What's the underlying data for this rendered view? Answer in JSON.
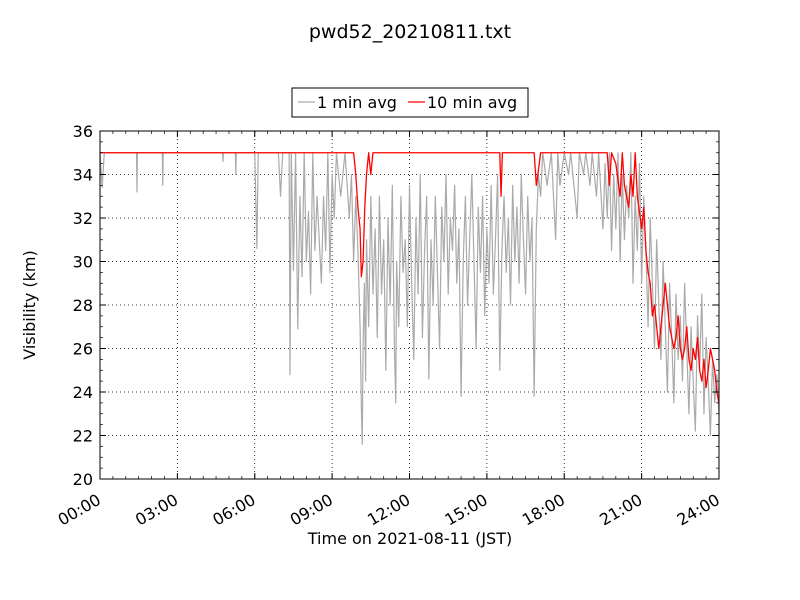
{
  "chart_data": {
    "type": "line",
    "title": "pwd52_20210811.txt",
    "xlabel": "Time on 2021-08-11 (JST)",
    "ylabel": "Visibility (km)",
    "xlim": [
      "00:00",
      "24:00"
    ],
    "ylim": [
      20,
      36
    ],
    "x_ticks": [
      "00:00",
      "03:00",
      "06:00",
      "09:00",
      "12:00",
      "15:00",
      "18:00",
      "21:00",
      "24:00"
    ],
    "y_ticks": [
      20,
      22,
      24,
      26,
      28,
      30,
      32,
      34,
      36
    ],
    "grid": true,
    "legend_position": "top-center, above plot",
    "series": [
      {
        "name": "1 min avg",
        "color": "#aaaaaa",
        "points": [
          [
            "00:00",
            35.0
          ],
          [
            "00:05",
            33.4
          ],
          [
            "00:10",
            35.0
          ],
          [
            "01:25",
            35.0
          ],
          [
            "01:26",
            33.2
          ],
          [
            "01:27",
            35.0
          ],
          [
            "02:25",
            35.0
          ],
          [
            "02:26",
            33.5
          ],
          [
            "02:27",
            35.0
          ],
          [
            "04:45",
            35.0
          ],
          [
            "04:46",
            34.6
          ],
          [
            "04:47",
            35.0
          ],
          [
            "05:15",
            35.0
          ],
          [
            "05:16",
            34.0
          ],
          [
            "05:17",
            35.0
          ],
          [
            "06:00",
            35.0
          ],
          [
            "06:05",
            30.6
          ],
          [
            "06:08",
            35.0
          ],
          [
            "06:55",
            35.0
          ],
          [
            "07:00",
            33.0
          ],
          [
            "07:05",
            35.0
          ],
          [
            "07:20",
            35.0
          ],
          [
            "07:22",
            24.8
          ],
          [
            "07:25",
            35.0
          ],
          [
            "07:30",
            29.6
          ],
          [
            "07:35",
            35.0
          ],
          [
            "07:40",
            26.9
          ],
          [
            "07:45",
            33.0
          ],
          [
            "07:50",
            29.3
          ],
          [
            "07:55",
            35.0
          ],
          [
            "08:00",
            30.0
          ],
          [
            "08:05",
            32.3
          ],
          [
            "08:10",
            28.5
          ],
          [
            "08:15",
            35.0
          ],
          [
            "08:20",
            30.5
          ],
          [
            "08:25",
            33.0
          ],
          [
            "08:30",
            31.0
          ],
          [
            "08:35",
            29.0
          ],
          [
            "08:40",
            33.0
          ],
          [
            "08:45",
            30.5
          ],
          [
            "08:50",
            35.0
          ],
          [
            "08:55",
            29.5
          ],
          [
            "09:00",
            34.0
          ],
          [
            "09:05",
            32.0
          ],
          [
            "09:10",
            35.0
          ],
          [
            "09:20",
            33.0
          ],
          [
            "09:30",
            35.0
          ],
          [
            "09:40",
            32.0
          ],
          [
            "09:45",
            34.0
          ],
          [
            "09:50",
            30.0
          ],
          [
            "09:55",
            33.0
          ],
          [
            "10:00",
            30.5
          ],
          [
            "10:05",
            27.0
          ],
          [
            "10:08",
            23.3
          ],
          [
            "10:10",
            21.6
          ],
          [
            "10:12",
            26.0
          ],
          [
            "10:15",
            29.0
          ],
          [
            "10:18",
            24.5
          ],
          [
            "10:20",
            31.0
          ],
          [
            "10:25",
            27.0
          ],
          [
            "10:30",
            33.0
          ],
          [
            "10:35",
            28.5
          ],
          [
            "10:40",
            31.5
          ],
          [
            "10:45",
            26.5
          ],
          [
            "10:50",
            33.0
          ],
          [
            "10:55",
            28.5
          ],
          [
            "11:00",
            31.0
          ],
          [
            "11:05",
            25.0
          ],
          [
            "11:10",
            32.0
          ],
          [
            "11:15",
            28.0
          ],
          [
            "11:20",
            33.5
          ],
          [
            "11:25",
            26.0
          ],
          [
            "11:28",
            23.5
          ],
          [
            "11:30",
            30.0
          ],
          [
            "11:35",
            27.0
          ],
          [
            "11:40",
            33.0
          ],
          [
            "11:45",
            29.5
          ],
          [
            "11:50",
            31.0
          ],
          [
            "11:55",
            27.0
          ],
          [
            "12:00",
            33.5
          ],
          [
            "12:05",
            29.0
          ],
          [
            "12:10",
            25.5
          ],
          [
            "12:15",
            32.0
          ],
          [
            "12:20",
            28.5
          ],
          [
            "12:25",
            34.0
          ],
          [
            "12:30",
            26.5
          ],
          [
            "12:35",
            30.5
          ],
          [
            "12:40",
            33.0
          ],
          [
            "12:45",
            24.6
          ],
          [
            "12:50",
            31.0
          ],
          [
            "12:55",
            28.0
          ],
          [
            "13:00",
            33.0
          ],
          [
            "13:05",
            29.5
          ],
          [
            "13:10",
            26.0
          ],
          [
            "13:15",
            32.5
          ],
          [
            "13:20",
            30.0
          ],
          [
            "13:25",
            34.0
          ],
          [
            "13:30",
            28.5
          ],
          [
            "13:35",
            32.0
          ],
          [
            "13:40",
            30.5
          ],
          [
            "13:45",
            33.5
          ],
          [
            "13:50",
            29.0
          ],
          [
            "13:55",
            31.5
          ],
          [
            "14:00",
            23.8
          ],
          [
            "14:05",
            30.0
          ],
          [
            "14:10",
            33.0
          ],
          [
            "14:15",
            28.0
          ],
          [
            "14:20",
            31.0
          ],
          [
            "14:25",
            34.0
          ],
          [
            "14:30",
            30.0
          ],
          [
            "14:35",
            26.0
          ],
          [
            "14:40",
            32.5
          ],
          [
            "14:45",
            29.5
          ],
          [
            "14:50",
            33.0
          ],
          [
            "14:55",
            27.5
          ],
          [
            "15:00",
            31.5
          ],
          [
            "15:05",
            29.0
          ],
          [
            "15:10",
            33.5
          ],
          [
            "15:15",
            28.5
          ],
          [
            "15:20",
            31.0
          ],
          [
            "15:25",
            34.0
          ],
          [
            "15:30",
            25.0
          ],
          [
            "15:35",
            30.5
          ],
          [
            "15:40",
            33.0
          ],
          [
            "15:45",
            29.5
          ],
          [
            "15:50",
            32.0
          ],
          [
            "15:55",
            28.0
          ],
          [
            "16:00",
            33.5
          ],
          [
            "16:05",
            30.0
          ],
          [
            "16:10",
            32.5
          ],
          [
            "16:15",
            29.0
          ],
          [
            "16:20",
            34.0
          ],
          [
            "16:25",
            31.0
          ],
          [
            "16:30",
            28.5
          ],
          [
            "16:35",
            33.0
          ],
          [
            "16:40",
            30.0
          ],
          [
            "16:45",
            32.0
          ],
          [
            "16:50",
            23.8
          ],
          [
            "16:55",
            31.5
          ],
          [
            "17:00",
            34.0
          ],
          [
            "17:05",
            33.0
          ],
          [
            "17:10",
            35.0
          ],
          [
            "17:20",
            33.5
          ],
          [
            "17:30",
            35.0
          ],
          [
            "17:40",
            31.0
          ],
          [
            "17:45",
            35.0
          ],
          [
            "17:50",
            33.5
          ],
          [
            "18:00",
            35.0
          ],
          [
            "18:10",
            34.0
          ],
          [
            "18:15",
            35.0
          ],
          [
            "18:30",
            32.0
          ],
          [
            "18:35",
            35.0
          ],
          [
            "18:45",
            34.0
          ],
          [
            "18:50",
            35.0
          ],
          [
            "19:00",
            33.5
          ],
          [
            "19:05",
            35.0
          ],
          [
            "19:15",
            33.0
          ],
          [
            "19:20",
            35.0
          ],
          [
            "19:30",
            31.5
          ],
          [
            "19:35",
            34.5
          ],
          [
            "19:40",
            32.0
          ],
          [
            "19:45",
            35.0
          ],
          [
            "19:50",
            30.5
          ],
          [
            "19:55",
            34.0
          ],
          [
            "20:00",
            31.5
          ],
          [
            "20:05",
            35.0
          ],
          [
            "20:10",
            30.0
          ],
          [
            "20:15",
            34.0
          ],
          [
            "20:20",
            31.0
          ],
          [
            "20:25",
            33.5
          ],
          [
            "20:30",
            32.0
          ],
          [
            "20:35",
            35.0
          ],
          [
            "20:40",
            29.0
          ],
          [
            "20:45",
            33.0
          ],
          [
            "20:50",
            30.5
          ],
          [
            "20:55",
            34.5
          ],
          [
            "21:00",
            29.0
          ],
          [
            "21:05",
            33.0
          ],
          [
            "21:10",
            30.5
          ],
          [
            "21:15",
            27.0
          ],
          [
            "21:20",
            32.0
          ],
          [
            "21:25",
            29.0
          ],
          [
            "21:30",
            26.0
          ],
          [
            "21:35",
            31.0
          ],
          [
            "21:40",
            28.0
          ],
          [
            "21:45",
            25.5
          ],
          [
            "21:50",
            30.0
          ],
          [
            "21:55",
            27.0
          ],
          [
            "22:00",
            24.0
          ],
          [
            "22:05",
            29.0
          ],
          [
            "22:10",
            26.5
          ],
          [
            "22:15",
            23.5
          ],
          [
            "22:20",
            28.5
          ],
          [
            "22:25",
            25.5
          ],
          [
            "22:30",
            27.5
          ],
          [
            "22:35",
            24.5
          ],
          [
            "22:40",
            29.0
          ],
          [
            "22:45",
            26.0
          ],
          [
            "22:50",
            23.0
          ],
          [
            "22:55",
            27.0
          ],
          [
            "23:00",
            24.5
          ],
          [
            "23:05",
            22.2
          ],
          [
            "23:10",
            27.5
          ],
          [
            "23:15",
            25.0
          ],
          [
            "23:20",
            28.5
          ],
          [
            "23:25",
            23.0
          ],
          [
            "23:30",
            26.5
          ],
          [
            "23:35",
            24.5
          ],
          [
            "23:40",
            22.0
          ],
          [
            "23:45",
            25.5
          ],
          [
            "23:50",
            23.5
          ],
          [
            "23:55",
            24.8
          ],
          [
            "24:00",
            23.0
          ]
        ]
      },
      {
        "name": "10 min avg",
        "color": "#ff0000",
        "points": [
          [
            "00:00",
            35.0
          ],
          [
            "09:50",
            35.0
          ],
          [
            "09:55",
            34.0
          ],
          [
            "10:00",
            32.5
          ],
          [
            "10:05",
            31.5
          ],
          [
            "10:08",
            29.3
          ],
          [
            "10:12",
            30.0
          ],
          [
            "10:16",
            32.5
          ],
          [
            "10:20",
            34.0
          ],
          [
            "10:25",
            35.0
          ],
          [
            "10:30",
            34.0
          ],
          [
            "10:35",
            35.0
          ],
          [
            "15:30",
            35.0
          ],
          [
            "15:33",
            33.0
          ],
          [
            "15:36",
            35.0
          ],
          [
            "16:50",
            35.0
          ],
          [
            "16:55",
            33.5
          ],
          [
            "17:00",
            34.2
          ],
          [
            "17:05",
            35.0
          ],
          [
            "19:40",
            35.0
          ],
          [
            "19:45",
            33.5
          ],
          [
            "19:50",
            35.0
          ],
          [
            "20:00",
            34.5
          ],
          [
            "20:10",
            33.0
          ],
          [
            "20:15",
            35.0
          ],
          [
            "20:20",
            33.5
          ],
          [
            "20:30",
            32.5
          ],
          [
            "20:35",
            34.0
          ],
          [
            "20:40",
            33.0
          ],
          [
            "20:45",
            35.0
          ],
          [
            "20:50",
            33.0
          ],
          [
            "21:00",
            31.5
          ],
          [
            "21:05",
            32.5
          ],
          [
            "21:10",
            30.5
          ],
          [
            "21:15",
            29.5
          ],
          [
            "21:20",
            29.0
          ],
          [
            "21:25",
            27.5
          ],
          [
            "21:30",
            28.0
          ],
          [
            "21:35",
            27.0
          ],
          [
            "21:40",
            26.0
          ],
          [
            "21:45",
            27.0
          ],
          [
            "21:50",
            28.0
          ],
          [
            "21:55",
            29.0
          ],
          [
            "22:00",
            28.0
          ],
          [
            "22:05",
            27.0
          ],
          [
            "22:10",
            26.5
          ],
          [
            "22:15",
            26.0
          ],
          [
            "22:20",
            26.5
          ],
          [
            "22:25",
            27.5
          ],
          [
            "22:30",
            26.0
          ],
          [
            "22:35",
            25.5
          ],
          [
            "22:40",
            26.0
          ],
          [
            "22:45",
            27.0
          ],
          [
            "22:50",
            25.5
          ],
          [
            "22:55",
            25.0
          ],
          [
            "23:00",
            26.0
          ],
          [
            "23:05",
            25.5
          ],
          [
            "23:10",
            26.5
          ],
          [
            "23:15",
            25.0
          ],
          [
            "23:20",
            24.5
          ],
          [
            "23:25",
            25.5
          ],
          [
            "23:30",
            24.2
          ],
          [
            "23:35",
            25.0
          ],
          [
            "23:40",
            26.0
          ],
          [
            "23:45",
            25.5
          ],
          [
            "23:50",
            25.0
          ],
          [
            "23:55",
            24.0
          ],
          [
            "24:00",
            23.5
          ]
        ]
      }
    ]
  }
}
